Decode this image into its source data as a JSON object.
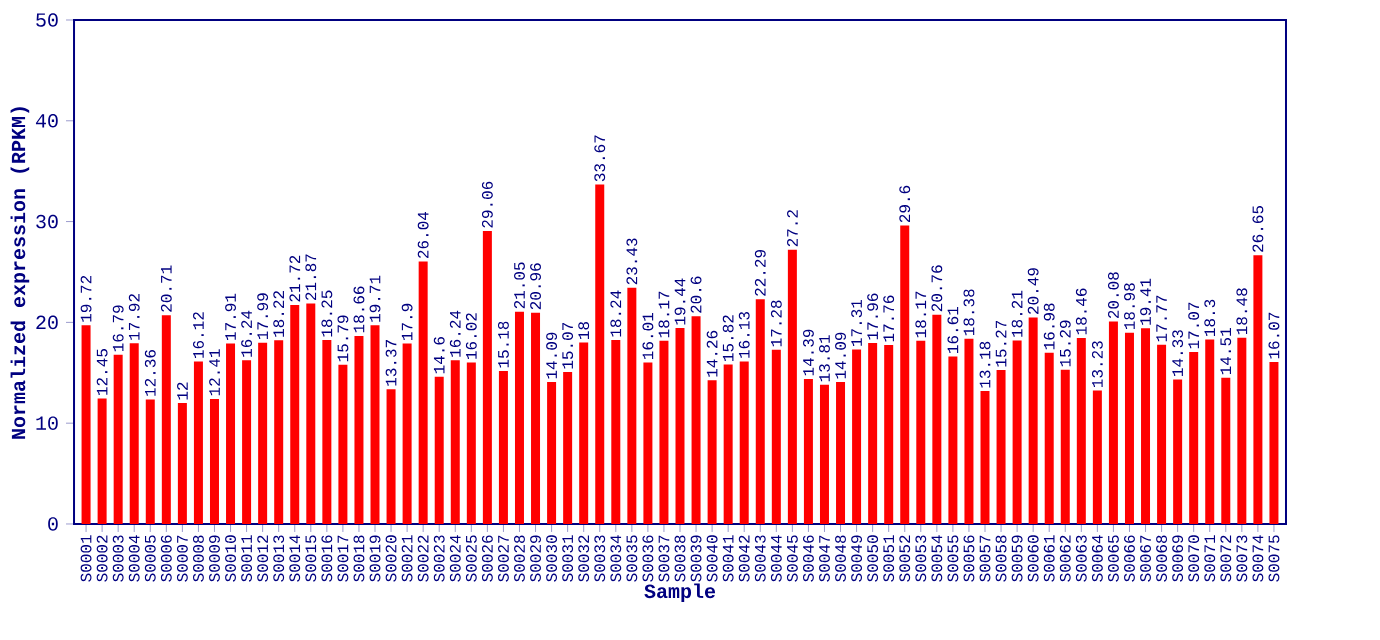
{
  "chart_data": {
    "type": "bar",
    "xlabel": "Sample",
    "ylabel": "Normalized expression (RPKM)",
    "categories": [
      "S0001",
      "S0002",
      "S0003",
      "S0004",
      "S0005",
      "S0006",
      "S0007",
      "S0008",
      "S0009",
      "S0010",
      "S0011",
      "S0012",
      "S0013",
      "S0014",
      "S0015",
      "S0016",
      "S0017",
      "S0018",
      "S0019",
      "S0020",
      "S0021",
      "S0022",
      "S0023",
      "S0024",
      "S0025",
      "S0026",
      "S0027",
      "S0028",
      "S0029",
      "S0030",
      "S0031",
      "S0032",
      "S0033",
      "S0034",
      "S0035",
      "S0036",
      "S0037",
      "S0038",
      "S0039",
      "S0040",
      "S0041",
      "S0042",
      "S0043",
      "S0044",
      "S0045",
      "S0046",
      "S0047",
      "S0048",
      "S0049",
      "S0050",
      "S0051",
      "S0052",
      "S0053",
      "S0054",
      "S0055",
      "S0056",
      "S0057",
      "S0058",
      "S0059",
      "S0060",
      "S0061",
      "S0062",
      "S0063",
      "S0064",
      "S0065",
      "S0066",
      "S0067",
      "S0068",
      "S0069",
      "S0070",
      "S0071",
      "S0072",
      "S0073",
      "S0074",
      "S0075"
    ],
    "values": [
      19.72,
      12.45,
      16.79,
      17.92,
      12.36,
      20.71,
      12,
      16.12,
      12.41,
      17.91,
      16.24,
      17.99,
      18.22,
      21.72,
      21.87,
      18.25,
      15.79,
      18.66,
      19.71,
      13.37,
      17.9,
      26.04,
      14.6,
      16.24,
      16.02,
      29.06,
      15.18,
      21.05,
      20.96,
      14.09,
      15.07,
      18,
      33.67,
      18.24,
      23.43,
      16.01,
      18.17,
      19.44,
      20.6,
      14.26,
      15.82,
      16.13,
      22.29,
      17.28,
      27.2,
      14.39,
      13.81,
      14.09,
      17.31,
      17.96,
      17.76,
      29.6,
      18.17,
      20.76,
      16.61,
      18.38,
      13.18,
      15.27,
      18.21,
      20.49,
      16.98,
      15.29,
      18.46,
      13.23,
      20.08,
      18.98,
      19.41,
      17.77,
      14.33,
      17.07,
      18.3,
      14.51,
      18.48,
      26.65,
      16.07
    ],
    "color": "#ff0000",
    "data_labels": true,
    "ylim": [
      0,
      50
    ],
    "yticks": [
      0,
      10,
      20,
      30,
      40,
      50
    ]
  }
}
